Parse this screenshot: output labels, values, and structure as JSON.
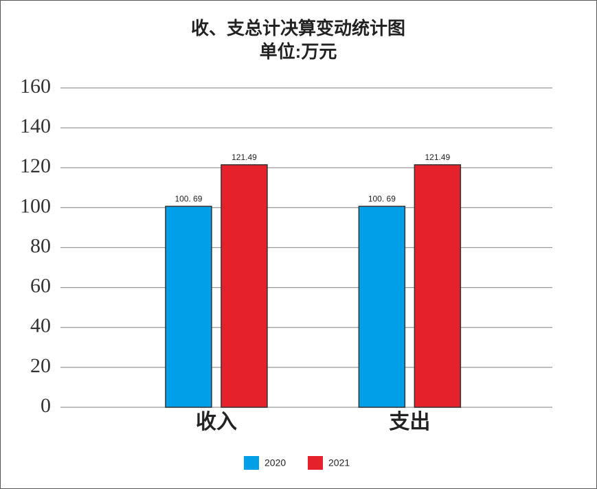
{
  "chart_data": {
    "type": "bar",
    "title": "收、支总计决算变动统计图",
    "subtitle": "单位:万元",
    "categories": [
      "收入",
      "支出"
    ],
    "series": [
      {
        "name": "2020",
        "color": "#00a0e9",
        "values": [
          100.69,
          100.69
        ],
        "value_labels": [
          "100. 69",
          "100. 69"
        ]
      },
      {
        "name": "2021",
        "color": "#e5212b",
        "values": [
          121.49,
          121.49
        ]
      }
    ],
    "ylim": [
      0,
      160
    ],
    "yticks": [
      0,
      20,
      40,
      60,
      80,
      100,
      120,
      140,
      160
    ],
    "grid": true
  }
}
